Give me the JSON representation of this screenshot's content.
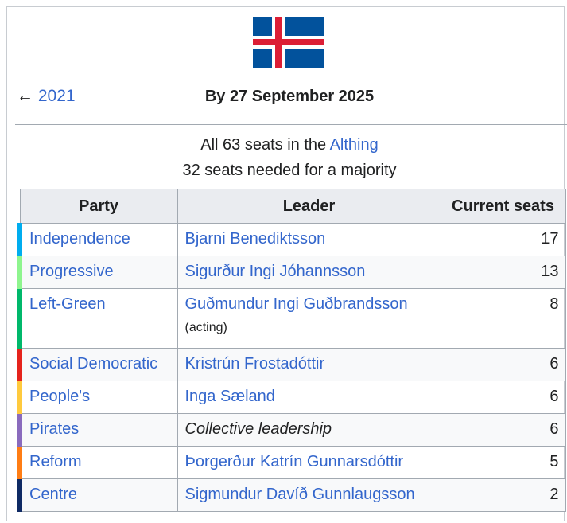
{
  "header": {
    "prev_arrow": "←",
    "prev": "2021",
    "date": "By 27 September 2025"
  },
  "seats_info": {
    "text": "All 63 seats in the",
    "link": "Althing",
    "majority": "32 seats needed for a majority"
  },
  "table": {
    "columns": [
      "Party",
      "Leader",
      "Current seats"
    ],
    "rows": [
      {
        "party": "Independence",
        "leader": "Bjarni Benediktsson",
        "seats": "17",
        "color": "#00adef"
      },
      {
        "party": "Progressive",
        "leader": "Sigurður Ingi Jóhannsson",
        "seats": "13",
        "color": "#8ef58e"
      },
      {
        "party": "Left-Green",
        "leader": "Guðmundur Ingi Guðbrandsson",
        "leader_note": "(acting)",
        "seats": "8",
        "color": "#00b86b"
      },
      {
        "party": "Social Democratic",
        "leader": "Kristrún Frostadóttir",
        "seats": "6",
        "color": "#e5231c"
      },
      {
        "party": "People's",
        "leader": "Inga Sæland",
        "seats": "6",
        "color": "#ffca3e"
      },
      {
        "party": "Pirates",
        "leader": "Collective leadership",
        "leader_italic": true,
        "seats": "6",
        "color": "#8a6bbd"
      },
      {
        "party": "Reform",
        "leader": "Þorgerður Katrín Gunnarsdóttir",
        "seats": "5",
        "color": "#ff7d14"
      },
      {
        "party": "Centre",
        "leader": "Sigmundur Davíð Gunnlaugsson",
        "seats": "2",
        "color": "#0f2a64"
      }
    ]
  }
}
